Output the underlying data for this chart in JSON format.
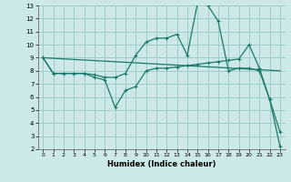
{
  "xlabel": "Humidex (Indice chaleur)",
  "bg_color": "#cce8e8",
  "grid_color": "#a0cccc",
  "line_color": "#1a7a6a",
  "xlim": [
    -0.5,
    23.5
  ],
  "ylim": [
    2,
    13
  ],
  "xticks": [
    0,
    1,
    2,
    3,
    4,
    5,
    6,
    7,
    8,
    9,
    10,
    11,
    12,
    13,
    14,
    15,
    16,
    17,
    18,
    19,
    20,
    21,
    22,
    23
  ],
  "yticks": [
    2,
    3,
    4,
    5,
    6,
    7,
    8,
    9,
    10,
    11,
    12,
    13
  ],
  "line1_x": [
    0,
    1,
    2,
    3,
    4,
    5,
    6,
    7,
    8,
    9,
    10,
    11,
    12,
    13,
    14,
    15,
    16,
    17,
    18,
    19,
    20,
    21,
    22,
    23
  ],
  "line1_y": [
    9,
    7.8,
    7.8,
    7.8,
    7.8,
    7.7,
    7.5,
    7.5,
    7.8,
    9.2,
    10.2,
    10.5,
    10.5,
    10.8,
    9.2,
    13.2,
    13.0,
    11.8,
    8.0,
    8.2,
    8.2,
    8.0,
    5.8,
    3.3
  ],
  "line2_x": [
    0,
    23
  ],
  "line2_y": [
    9,
    8.0
  ],
  "line3_x": [
    0,
    1,
    2,
    3,
    4,
    5,
    6,
    7,
    8,
    9,
    10,
    11,
    12,
    13,
    14,
    15,
    16,
    17,
    18,
    19,
    20,
    21,
    22,
    23
  ],
  "line3_y": [
    9,
    7.8,
    7.8,
    7.8,
    7.8,
    7.5,
    7.3,
    5.2,
    6.5,
    6.8,
    8.0,
    8.2,
    8.2,
    8.3,
    8.4,
    8.5,
    8.6,
    8.7,
    8.8,
    8.9,
    10.0,
    8.2,
    5.8,
    2.2
  ]
}
